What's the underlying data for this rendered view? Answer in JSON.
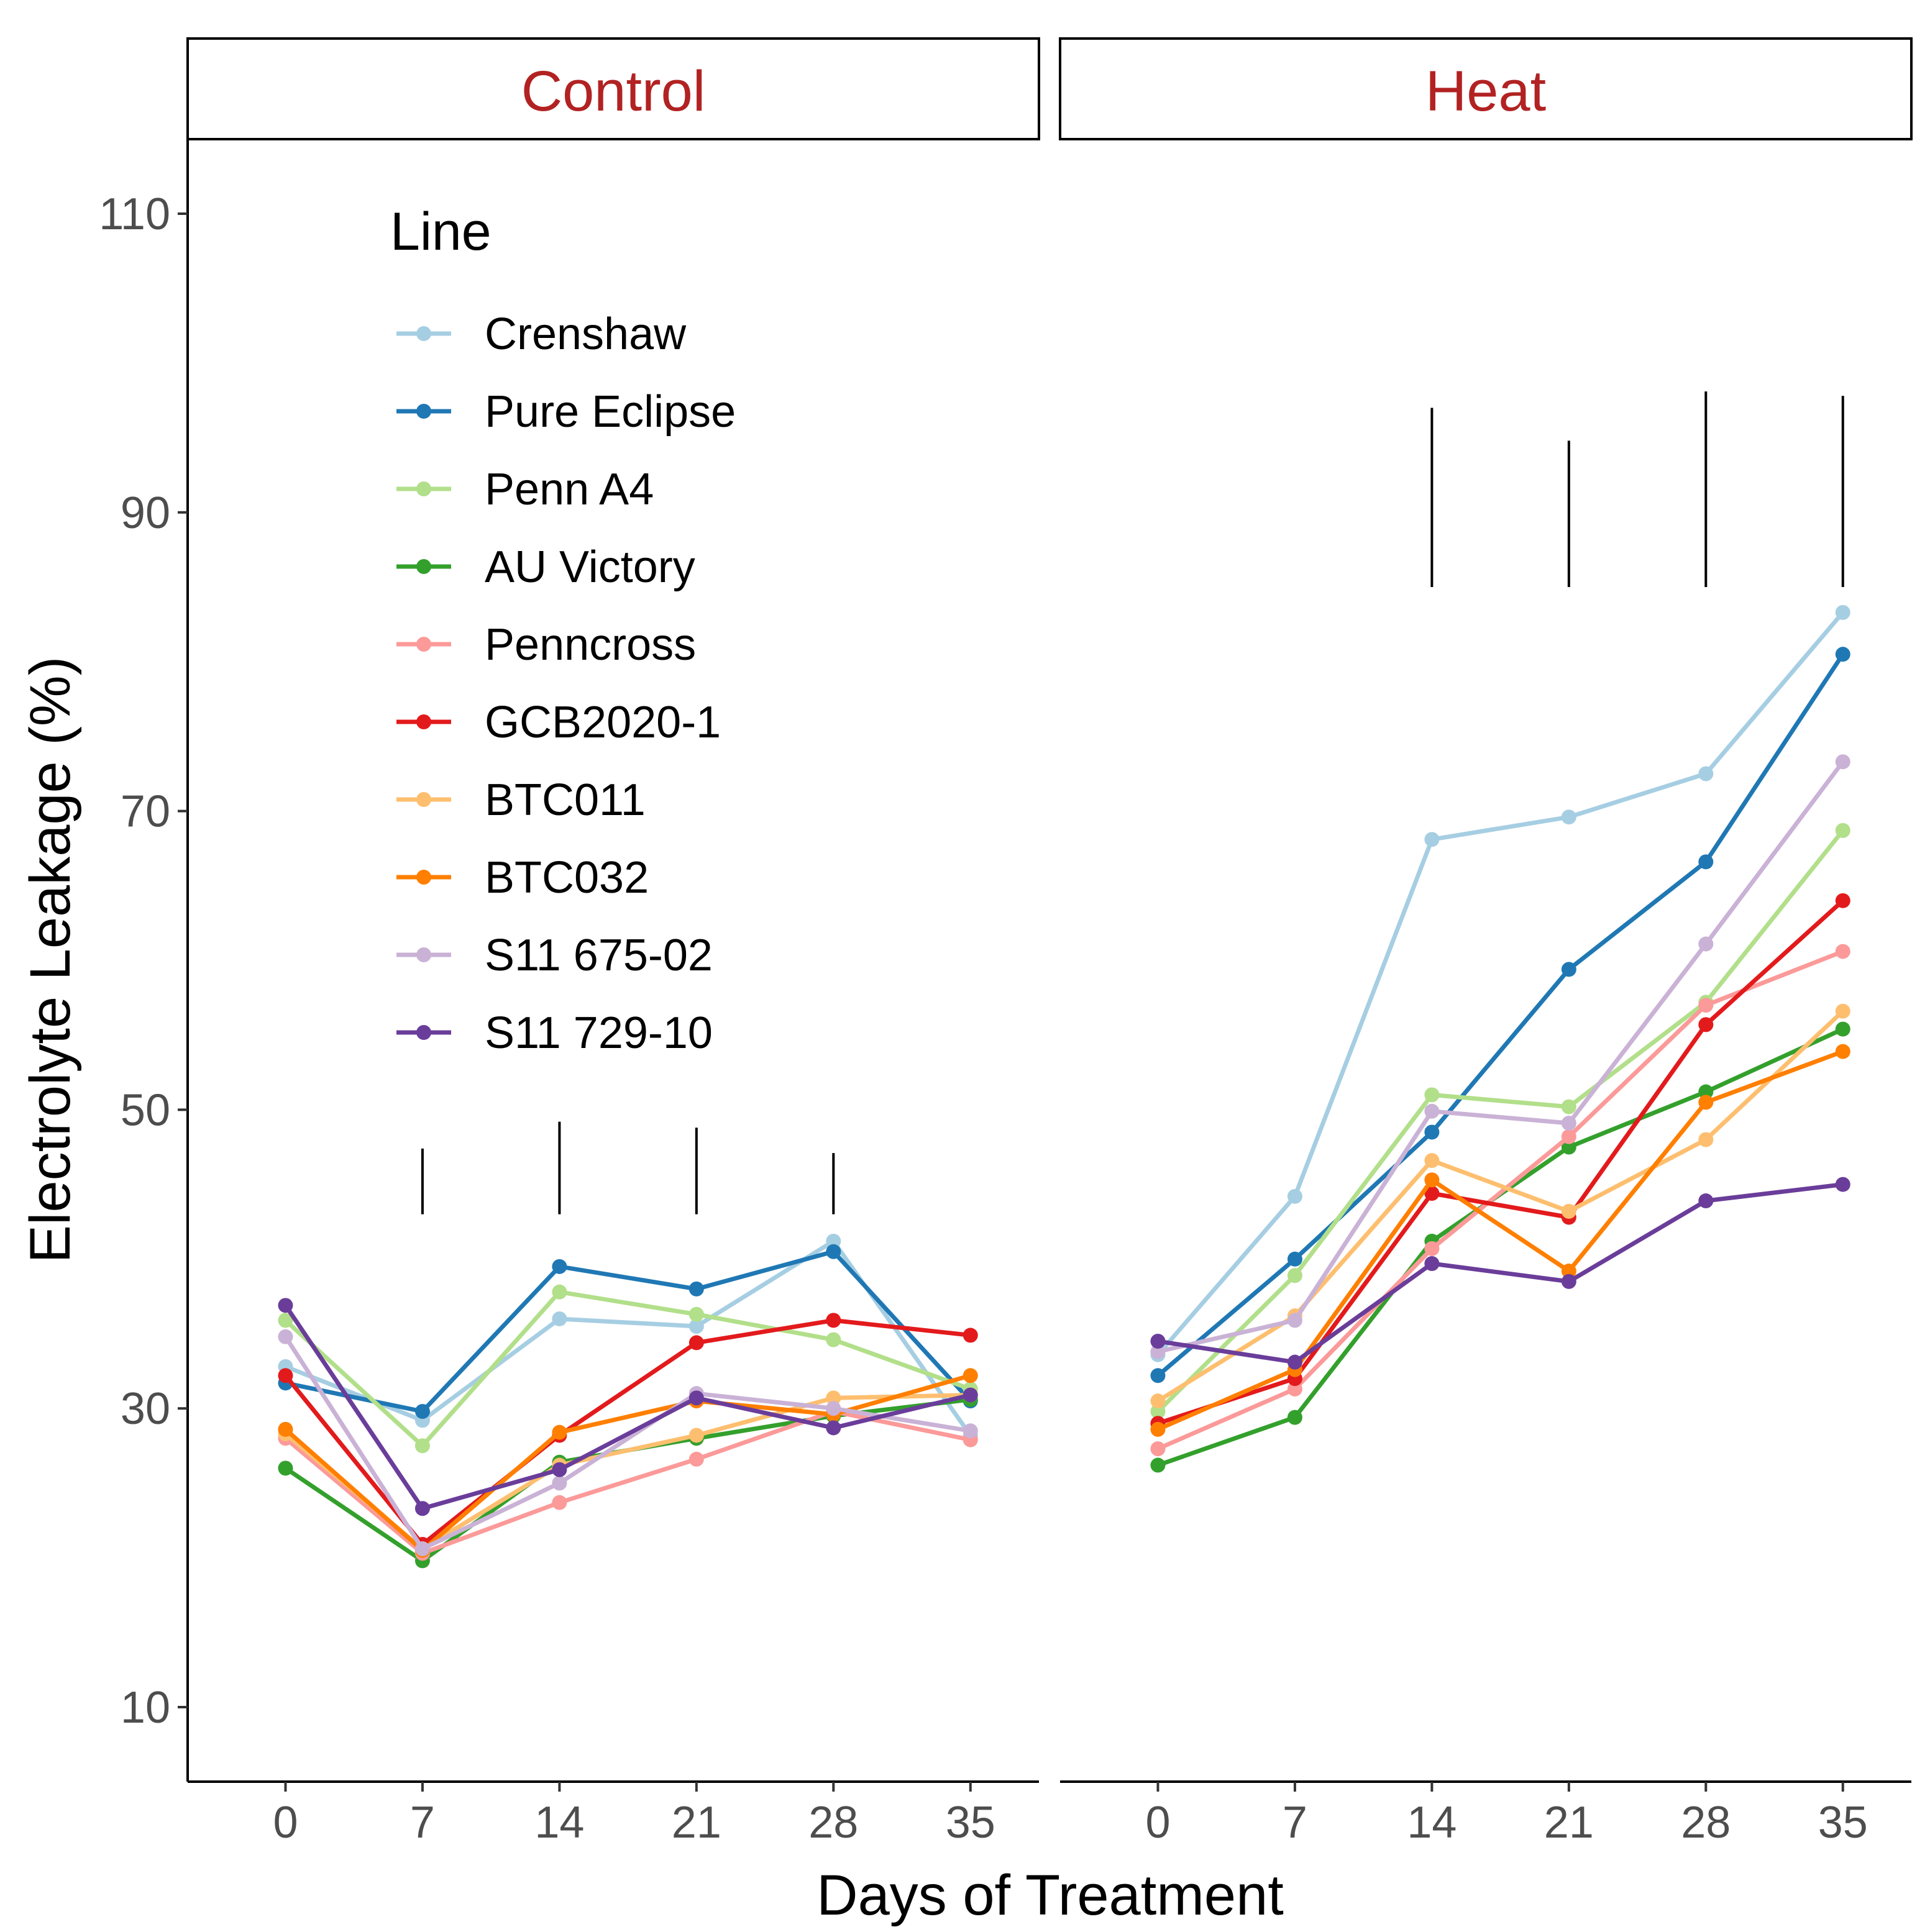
{
  "chart_data": {
    "type": "line",
    "facets": [
      "Control",
      "Heat"
    ],
    "x": [
      0,
      7,
      14,
      21,
      28,
      35
    ],
    "xlabel": "Days of Treatment",
    "ylabel": "Electrolyte Leakage (%)",
    "yticks": [
      10,
      30,
      50,
      70,
      90,
      110
    ],
    "ylim": [
      5,
      110
    ],
    "xlim": [
      -5,
      38.5
    ],
    "legend_title": "Line",
    "legend_position": "top-left",
    "series": [
      {
        "name": "Crenshaw",
        "color": "#a6cee3",
        "Control": [
          32.8,
          29.2,
          36.0,
          35.5,
          41.2,
          28.2
        ],
        "Heat": [
          33.6,
          44.2,
          68.1,
          69.6,
          72.5,
          83.3
        ]
      },
      {
        "name": "Pure Eclipse",
        "color": "#1f78b4",
        "Control": [
          31.7,
          29.8,
          39.5,
          38.0,
          40.5,
          30.5
        ],
        "Heat": [
          32.2,
          40.0,
          48.5,
          59.4,
          66.6,
          80.5
        ]
      },
      {
        "name": "Penn A4",
        "color": "#b2df8a",
        "Control": [
          35.9,
          27.5,
          37.8,
          36.3,
          34.6,
          31.3
        ],
        "Heat": [
          29.8,
          38.9,
          51.0,
          50.2,
          57.2,
          68.7
        ]
      },
      {
        "name": "AU Victory",
        "color": "#33a02c",
        "Control": [
          26.0,
          19.8,
          26.4,
          28.0,
          29.5,
          30.6
        ],
        "Heat": [
          26.2,
          29.4,
          41.2,
          47.5,
          51.2,
          55.4
        ]
      },
      {
        "name": "Penncross",
        "color": "#fb9a99",
        "Control": [
          28.0,
          20.3,
          23.7,
          26.6,
          29.8,
          27.9
        ],
        "Heat": [
          27.3,
          31.3,
          40.7,
          48.2,
          57.0,
          60.6
        ]
      },
      {
        "name": "GCB2020-1",
        "color": "#e31a1c",
        "Control": [
          32.2,
          20.9,
          28.2,
          34.4,
          35.9,
          34.9
        ],
        "Heat": [
          29.0,
          32.0,
          44.4,
          42.8,
          55.7,
          64.0
        ]
      },
      {
        "name": "BTC011",
        "color": "#fdbf6f",
        "Control": [
          28.3,
          20.6,
          26.2,
          28.2,
          30.7,
          30.9
        ],
        "Heat": [
          30.5,
          36.2,
          46.6,
          43.2,
          48.0,
          56.6
        ]
      },
      {
        "name": "BTC032",
        "color": "#ff7f00",
        "Control": [
          28.6,
          20.5,
          28.4,
          30.5,
          29.6,
          32.2
        ],
        "Heat": [
          28.6,
          32.6,
          45.3,
          39.2,
          50.5,
          53.9
        ]
      },
      {
        "name": "S11 675-02",
        "color": "#cab2d6",
        "Control": [
          34.8,
          20.6,
          25.0,
          31.0,
          30.0,
          28.5
        ],
        "Heat": [
          33.8,
          35.9,
          49.9,
          49.1,
          61.1,
          73.3
        ]
      },
      {
        "name": "S11 729-10",
        "color": "#6a3d9a",
        "Control": [
          36.9,
          23.3,
          25.9,
          30.7,
          28.7,
          30.9
        ],
        "Heat": [
          34.5,
          33.1,
          39.7,
          38.5,
          43.9,
          45.0
        ]
      }
    ],
    "significance_bars": {
      "Control": [
        {
          "x": 7,
          "y_low": 43.0,
          "y_high": 47.4
        },
        {
          "x": 14,
          "y_low": 43.0,
          "y_high": 49.2
        },
        {
          "x": 21,
          "y_low": 43.0,
          "y_high": 48.8
        },
        {
          "x": 28,
          "y_low": 43.0,
          "y_high": 47.1
        }
      ],
      "Heat": [
        {
          "x": 14,
          "y_low": 85.0,
          "y_high": 97.0
        },
        {
          "x": 21,
          "y_low": 85.0,
          "y_high": 94.8
        },
        {
          "x": 28,
          "y_low": 85.0,
          "y_high": 98.1
        },
        {
          "x": 35,
          "y_low": 85.0,
          "y_high": 97.8
        }
      ]
    }
  }
}
